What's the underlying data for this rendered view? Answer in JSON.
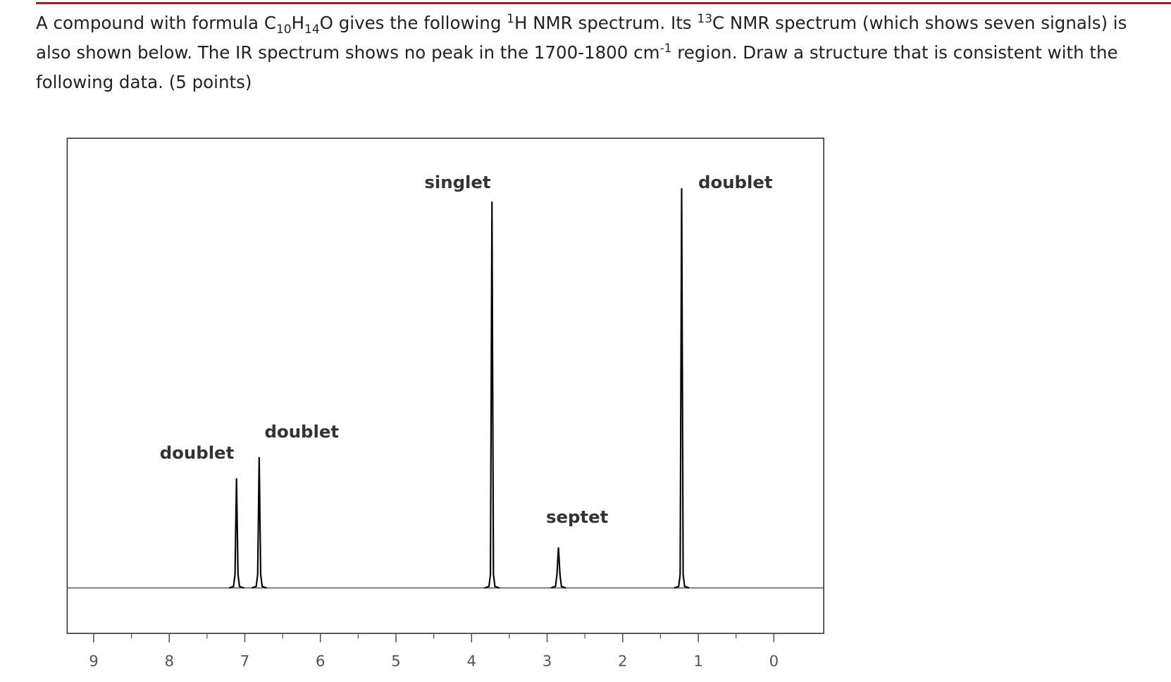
{
  "question": [
    "A compound with formula C",
    "10",
    "H",
    "14",
    "O gives the following ",
    "1",
    "H NMR spectrum.  Its ",
    "13",
    "C NMR spectrum (which shows seven signals) is also shown below.  The IR spectrum shows no peak in the 1700-1800 cm",
    "-1",
    " region.  Draw a structure that is consistent with the following data.  (5 points)"
  ],
  "chart_data": {
    "type": "spectrum",
    "x": [
      7.11,
      6.81,
      3.73,
      2.85,
      1.22
    ],
    "values": [
      24.4,
      29.1,
      85.9,
      9.0,
      88.9
    ],
    "peak_labels": [
      "doublet",
      "doublet",
      "singlet",
      "septet",
      "doublet"
    ],
    "xlim": [
      9.35,
      -0.66
    ],
    "ylim": [
      -10.1,
      100
    ],
    "xticks": [
      9,
      8,
      7,
      6,
      5,
      4,
      3,
      2,
      1,
      0
    ],
    "xminorticks": [
      8.5,
      7.5,
      6.5,
      5.5,
      4.5,
      3.5,
      2.5,
      1.5,
      0.5
    ],
    "color": "#000000"
  }
}
